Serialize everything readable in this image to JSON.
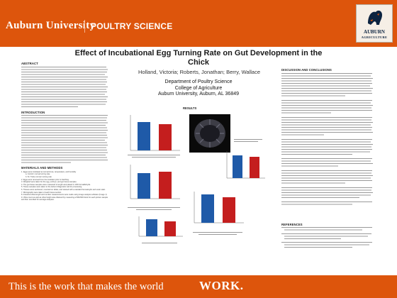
{
  "header": {
    "brand": "Auburn University",
    "department": "POULTRY SCIENCE",
    "logo_text": "AUBURN",
    "logo_subtext": "AGRICULTURE"
  },
  "poster": {
    "title_line1": "Effect of Incubational Egg Turning Rate on Gut Development in the",
    "title_line2": "Chick",
    "authors": "Holland, Victoria; Roberts, Jonathan; Berry, Wallace",
    "affiliation_line1": "Department  of  Poultry Science",
    "affiliation_line2": "College of Agriculture",
    "affiliation_line3": "Auburn University, Auburn, AL 36849"
  },
  "left_column": {
    "abstract_heading": "ABSTRACT",
    "intro_heading": "INTRODUCTION",
    "methods_heading": "MATERIALS AND METHODS",
    "methods_items": [
      "1. Eggs were incubated at normal times, temperature, and humidity",
      "a. Control: normal turning rate",
      "b. 5x: Twice normal: turning rate",
      "2. Eggs were removed from the incubator prior to hatching.",
      "3. Weighed were taken for the egg, embryo, and gut tissue samples.",
      "4. The gut tissue samples were measured in length and placed in 10% formaldehyde.",
      "5. Tissue samples were taken to the Auburn Diagnostic Lab for processing.",
      "6. Tissues were sectioned, mounted on slides, and stained with a standard hematoxylin and eosin stain.",
      "7. Micrographs were taken of each tissue section.",
      "8. Intestinal villus length and number measurements were made using image analysis software (Image J).",
      "9. Villus count as well as villus height was obtained by measuring a 500x500 block for each picture sample and then recorded for average analyses."
    ]
  },
  "results": {
    "heading": "RESULTS"
  },
  "right_column": {
    "discussion_heading": "DISCUSSION AND CONCLUSIONS",
    "references_heading": "REFERENCES"
  },
  "footer": {
    "tagline": "This is the work that makes the world",
    "work": "WORK."
  }
}
